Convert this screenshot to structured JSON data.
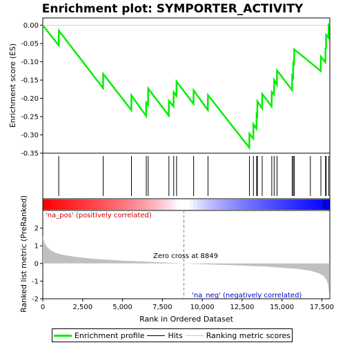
{
  "chart_data": {
    "type": "line",
    "title": "Enrichment plot: SYMPORTER_ACTIVITY",
    "top_panel": {
      "ylabel": "Enrichment score (ES)",
      "ylim": [
        -0.35,
        0.02
      ],
      "yticks": [
        0.0,
        -0.05,
        -0.1,
        -0.15,
        -0.2,
        -0.25,
        -0.3,
        -0.35
      ],
      "ytick_labels": [
        "0.00",
        "-0.05",
        "-0.10",
        "-0.15",
        "-0.20",
        "-0.25",
        "-0.30",
        "-0.35"
      ],
      "series_name": "Enrichment profile",
      "es_points": [
        [
          0,
          0.0
        ],
        [
          1000,
          -0.055
        ],
        [
          1010,
          -0.015
        ],
        [
          3780,
          -0.172
        ],
        [
          3790,
          -0.133
        ],
        [
          5550,
          -0.232
        ],
        [
          5560,
          -0.192
        ],
        [
          6480,
          -0.248
        ],
        [
          6490,
          -0.212
        ],
        [
          6600,
          -0.218
        ],
        [
          6610,
          -0.173
        ],
        [
          7900,
          -0.247
        ],
        [
          7910,
          -0.207
        ],
        [
          8200,
          -0.222
        ],
        [
          8210,
          -0.183
        ],
        [
          8380,
          -0.193
        ],
        [
          8390,
          -0.154
        ],
        [
          9450,
          -0.215
        ],
        [
          9460,
          -0.178
        ],
        [
          10350,
          -0.232
        ],
        [
          10360,
          -0.191
        ],
        [
          12950,
          -0.335
        ],
        [
          12960,
          -0.297
        ],
        [
          13200,
          -0.31
        ],
        [
          13210,
          -0.271
        ],
        [
          13400,
          -0.283
        ],
        [
          13410,
          -0.245
        ],
        [
          13450,
          -0.248
        ],
        [
          13460,
          -0.208
        ],
        [
          13750,
          -0.227
        ],
        [
          13760,
          -0.188
        ],
        [
          14350,
          -0.222
        ],
        [
          14360,
          -0.183
        ],
        [
          14500,
          -0.19
        ],
        [
          14510,
          -0.15
        ],
        [
          14680,
          -0.163
        ],
        [
          14690,
          -0.124
        ],
        [
          15630,
          -0.177
        ],
        [
          15640,
          -0.138
        ],
        [
          15700,
          -0.142
        ],
        [
          15710,
          -0.103
        ],
        [
          15760,
          -0.106
        ],
        [
          15770,
          -0.066
        ],
        [
          17430,
          -0.125
        ],
        [
          17440,
          -0.086
        ],
        [
          17720,
          -0.101
        ],
        [
          17730,
          -0.062
        ],
        [
          17760,
          -0.065
        ],
        [
          17770,
          -0.026
        ],
        [
          17920,
          -0.034
        ],
        [
          17930,
          0.003
        ],
        [
          18000,
          0.003
        ]
      ]
    },
    "hits": [
      1000,
      3790,
      5560,
      6490,
      6610,
      7910,
      8210,
      8390,
      9460,
      10360,
      12960,
      13210,
      13410,
      13460,
      13760,
      14360,
      14510,
      14690,
      15640,
      15710,
      15770,
      16780,
      17440,
      17730,
      17770,
      17930
    ],
    "bottom_panel": {
      "ylabel": "Ranked list metric (PreRanked)",
      "ylim": [
        -2,
        3
      ],
      "yticks": [
        2,
        1,
        0,
        -1,
        -2
      ],
      "ytick_labels": [
        "2",
        "1",
        "0",
        "-1",
        "-2"
      ],
      "metric_points": [
        [
          0,
          1.55
        ],
        [
          100,
          1.2
        ],
        [
          250,
          0.95
        ],
        [
          500,
          0.75
        ],
        [
          800,
          0.6
        ],
        [
          1200,
          0.5
        ],
        [
          2000,
          0.38
        ],
        [
          3000,
          0.28
        ],
        [
          4000,
          0.21
        ],
        [
          5000,
          0.16
        ],
        [
          6000,
          0.12
        ],
        [
          7000,
          0.08
        ],
        [
          8000,
          0.04
        ],
        [
          8849,
          0.0
        ],
        [
          10000,
          -0.04
        ],
        [
          11000,
          -0.07
        ],
        [
          12000,
          -0.1
        ],
        [
          13000,
          -0.14
        ],
        [
          14000,
          -0.18
        ],
        [
          15000,
          -0.24
        ],
        [
          16000,
          -0.31
        ],
        [
          16800,
          -0.42
        ],
        [
          17300,
          -0.55
        ],
        [
          17600,
          -0.7
        ],
        [
          17800,
          -0.95
        ],
        [
          17900,
          -1.2
        ],
        [
          17990,
          -1.95
        ]
      ],
      "pos_label": "'na_pos' (positively correlated)",
      "neg_label": "'na_neg' (negatively correlated)",
      "zero_cross_label": "Zero cross at 8849",
      "zero_cross": 8849
    },
    "xlabel": "Rank in Ordered Dataset",
    "xlim": [
      0,
      18000
    ],
    "xticks": [
      0,
      2500,
      5000,
      7500,
      10000,
      12500,
      15000,
      17500
    ],
    "xtick_labels": [
      "0",
      "2,500",
      "5,000",
      "7,500",
      "10,000",
      "12,500",
      "15,000",
      "17,500"
    ],
    "colors": {
      "enrichment_line": "#00ee00",
      "hit_line": "#000000",
      "metric_fill": "#c0c0c0",
      "heat_pos": "#ff0000",
      "heat_neg": "#0000ff"
    }
  },
  "legend": {
    "items": [
      "Enrichment profile",
      "Hits",
      "Ranking metric scores"
    ]
  }
}
